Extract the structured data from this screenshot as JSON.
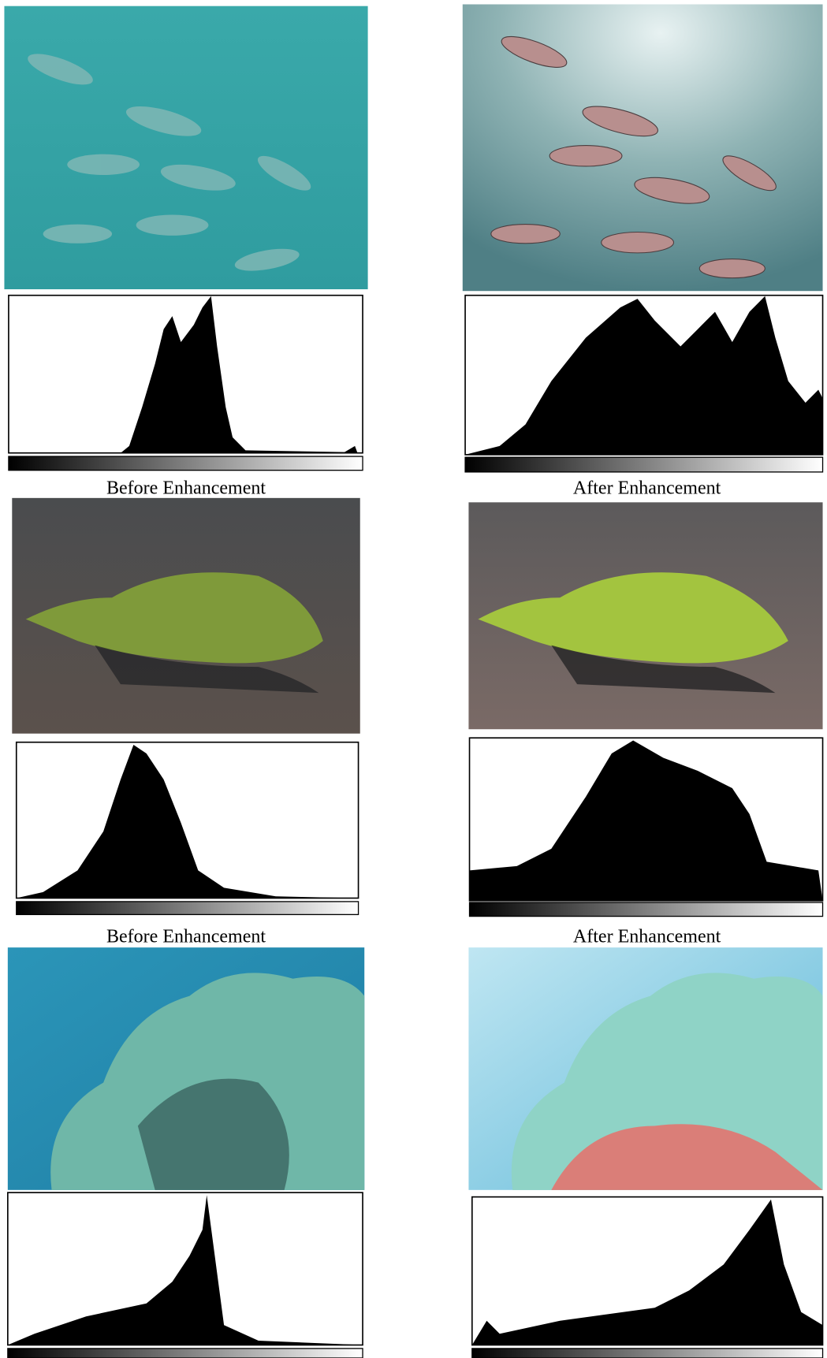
{
  "figure": {
    "captions": [
      [
        "Before Enhancement",
        "After Enhancement"
      ],
      [
        "Before Enhancement",
        "After Enhancement"
      ]
    ]
  }
}
